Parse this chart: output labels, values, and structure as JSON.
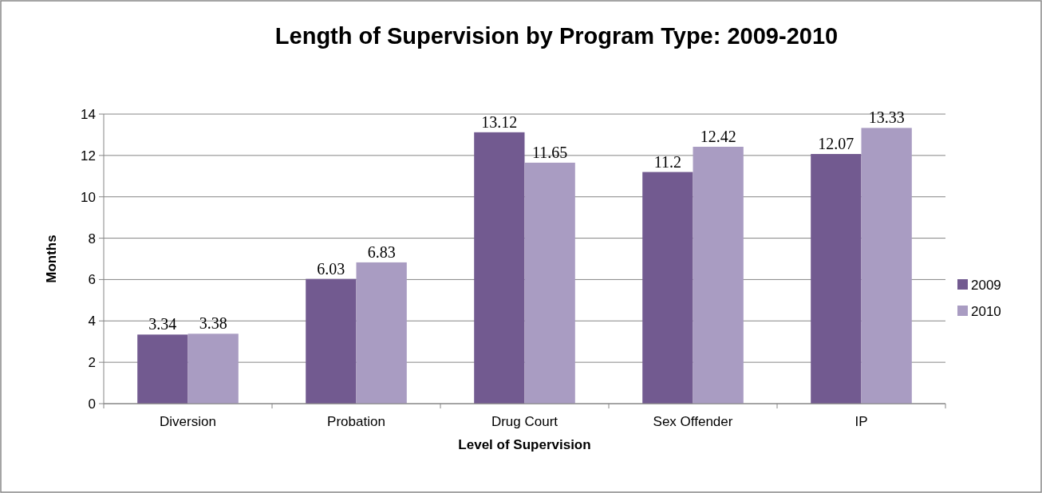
{
  "chart_data": {
    "type": "bar",
    "title": "Length of Supervision by Program Type: 2009-2010",
    "xlabel": "Level of Supervision",
    "ylabel": "Months",
    "categories": [
      "Diversion",
      "Probation",
      "Drug Court",
      "Sex Offender",
      "IP"
    ],
    "series": [
      {
        "name": "2009",
        "color": "#725a90",
        "values": [
          3.34,
          6.03,
          13.12,
          11.2,
          12.07
        ]
      },
      {
        "name": "2010",
        "color": "#a99cc2",
        "values": [
          3.38,
          6.83,
          11.65,
          12.42,
          13.33
        ]
      }
    ],
    "ylim": [
      0,
      14
    ],
    "yticks": [
      0,
      2,
      4,
      6,
      8,
      10,
      12,
      14
    ],
    "grid": "y",
    "legend": "right",
    "data_labels": true
  }
}
